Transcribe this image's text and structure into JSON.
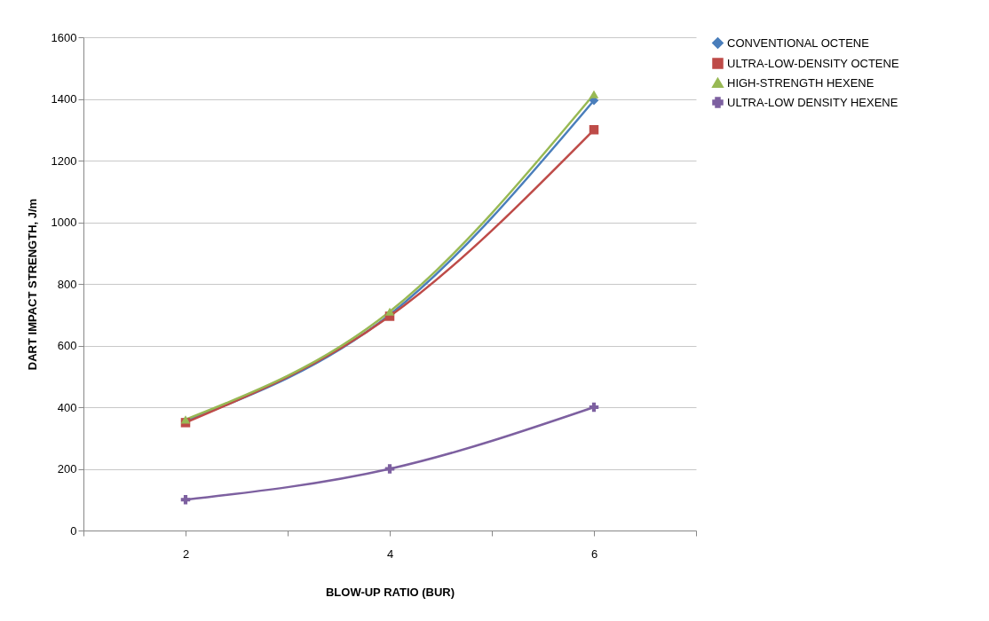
{
  "chart_data": {
    "type": "line",
    "xlabel": "BLOW-UP RATIO (BUR)",
    "ylabel": "DART IMPACT STRENGTH, J/m",
    "x": [
      2,
      4,
      6
    ],
    "series": [
      {
        "name": "CONVENTIONAL OCTENE",
        "color": "#4a7ebb",
        "marker": "diamond",
        "values": [
          355,
          700,
          1395
        ]
      },
      {
        "name": "ULTRA-LOW-DENSITY OCTENE",
        "color": "#be4b48",
        "marker": "square",
        "values": [
          350,
          695,
          1300
        ]
      },
      {
        "name": "HIGH-STRENGTH HEXENE",
        "color": "#98b954",
        "marker": "triangle",
        "values": [
          360,
          710,
          1415
        ]
      },
      {
        "name": "ULTRA-LOW DENSITY HEXENE",
        "color": "#7d60a0",
        "marker": "cross",
        "values": [
          100,
          200,
          400
        ]
      }
    ],
    "xlim": [
      1,
      7
    ],
    "xticks": [
      {
        "value": 1,
        "label": null
      },
      2,
      {
        "value": 3,
        "label": null
      },
      4,
      {
        "value": 5,
        "label": null
      },
      6,
      {
        "value": 7,
        "label": null
      }
    ],
    "ylim": [
      0,
      1600
    ],
    "yticks": [
      0,
      200,
      400,
      600,
      800,
      1000,
      1200,
      1400,
      1600
    ],
    "grid": "y",
    "legend": "right",
    "line_style": "solid"
  }
}
